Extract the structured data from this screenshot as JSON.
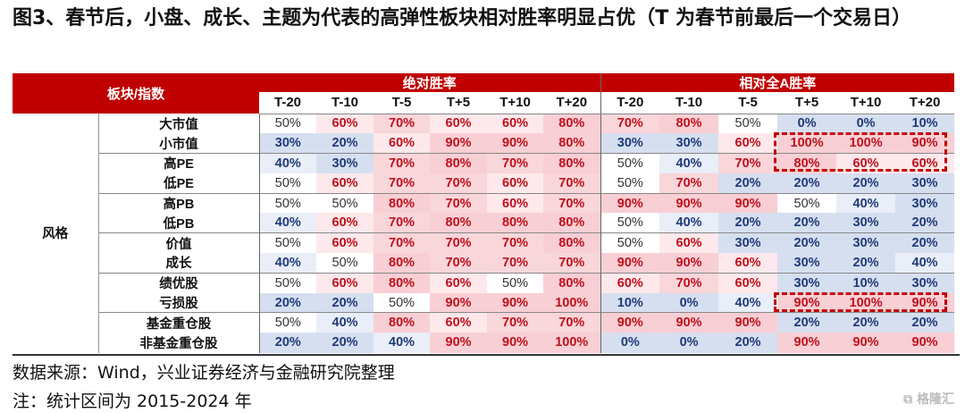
{
  "title": "图3、春节后，小盘、成长、主题为代表的高弹性板块相对胜率明显占优（T 为春节前最后一个交易日）",
  "table": {
    "corner_header": "板块/指数",
    "group_headers": [
      "绝对胜率",
      "相对全A胜率"
    ],
    "periods": [
      "T-20",
      "T-10",
      "T-5",
      "T+5",
      "T+10",
      "T+20"
    ],
    "row_group": "风格",
    "rows": [
      {
        "name": "大市值",
        "abs": [
          "50%",
          "60%",
          "70%",
          "60%",
          "60%",
          "80%"
        ],
        "rel": [
          "70%",
          "80%",
          "50%",
          "0%",
          "0%",
          "10%"
        ]
      },
      {
        "name": "小市值",
        "abs": [
          "30%",
          "20%",
          "60%",
          "90%",
          "90%",
          "80%"
        ],
        "rel": [
          "30%",
          "30%",
          "60%",
          "100%",
          "100%",
          "90%"
        ]
      },
      {
        "name": "高PE",
        "abs": [
          "40%",
          "30%",
          "70%",
          "80%",
          "70%",
          "80%"
        ],
        "rel": [
          "50%",
          "40%",
          "70%",
          "80%",
          "60%",
          "60%"
        ]
      },
      {
        "name": "低PE",
        "abs": [
          "50%",
          "60%",
          "70%",
          "70%",
          "60%",
          "70%"
        ],
        "rel": [
          "50%",
          "70%",
          "20%",
          "20%",
          "20%",
          "30%"
        ]
      },
      {
        "name": "高PB",
        "abs": [
          "50%",
          "50%",
          "80%",
          "70%",
          "60%",
          "70%"
        ],
        "rel": [
          "90%",
          "90%",
          "90%",
          "50%",
          "40%",
          "30%"
        ]
      },
      {
        "name": "低PB",
        "abs": [
          "40%",
          "60%",
          "70%",
          "80%",
          "80%",
          "80%"
        ],
        "rel": [
          "50%",
          "40%",
          "20%",
          "20%",
          "30%",
          "20%"
        ]
      },
      {
        "name": "价值",
        "abs": [
          "50%",
          "60%",
          "70%",
          "70%",
          "70%",
          "80%"
        ],
        "rel": [
          "50%",
          "60%",
          "30%",
          "20%",
          "30%",
          "20%"
        ]
      },
      {
        "name": "成长",
        "abs": [
          "40%",
          "50%",
          "80%",
          "70%",
          "70%",
          "70%"
        ],
        "rel": [
          "90%",
          "90%",
          "60%",
          "30%",
          "20%",
          "40%"
        ]
      },
      {
        "name": "绩优股",
        "abs": [
          "50%",
          "60%",
          "80%",
          "60%",
          "50%",
          "80%"
        ],
        "rel": [
          "60%",
          "70%",
          "60%",
          "30%",
          "10%",
          "30%"
        ]
      },
      {
        "name": "亏损股",
        "abs": [
          "20%",
          "20%",
          "50%",
          "90%",
          "90%",
          "100%"
        ],
        "rel": [
          "10%",
          "0%",
          "40%",
          "90%",
          "100%",
          "90%"
        ]
      },
      {
        "name": "基金重仓股",
        "abs": [
          "50%",
          "40%",
          "80%",
          "60%",
          "70%",
          "70%"
        ],
        "rel": [
          "90%",
          "90%",
          "90%",
          "20%",
          "20%",
          "20%"
        ]
      },
      {
        "name": "非基金重仓股",
        "abs": [
          "20%",
          "20%",
          "40%",
          "90%",
          "90%",
          "100%"
        ],
        "rel": [
          "0%",
          "0%",
          "20%",
          "90%",
          "90%",
          "90%"
        ]
      }
    ],
    "colors": {
      "header_bg": "#c00000",
      "high_text": "#c0101c",
      "low_text": "#1f3a78",
      "highlight_box": "#c00000"
    }
  },
  "footer": {
    "source": "数据来源：Wind，兴业证券经济与金融研究院整理",
    "note": "注：统计区间为 2015-2024 年"
  },
  "watermark_logo": "格隆汇"
}
